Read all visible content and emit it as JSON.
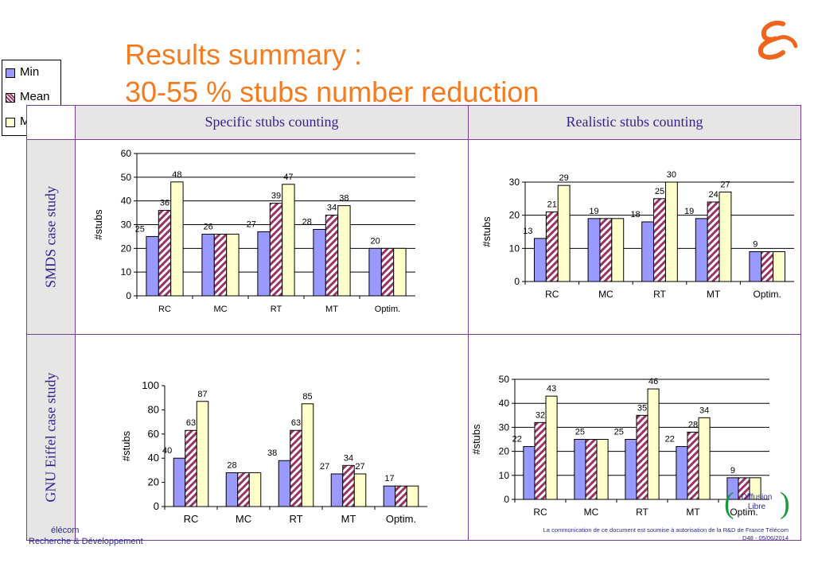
{
  "title": {
    "line1": "Results summary :",
    "line2": "30-55 % stubs number reduction"
  },
  "legend": [
    {
      "label": "Min",
      "color": "#9999ff"
    },
    {
      "label": "Mean",
      "color": "#993366"
    },
    {
      "label": "Max",
      "color": "#ffffcc"
    }
  ],
  "columns": [
    "Specific stubs counting",
    "Realistic stubs counting"
  ],
  "rows": [
    "SMDS case study",
    "GNU Eiffel case study"
  ],
  "chart_data": [
    {
      "type": "bar",
      "row": "SMDS case study",
      "column": "Specific stubs counting",
      "categories": [
        "RC",
        "MC",
        "RT",
        "MT",
        "Optim."
      ],
      "series": [
        {
          "name": "Min",
          "values": [
            25,
            26,
            27,
            28,
            20
          ]
        },
        {
          "name": "Mean",
          "values": [
            36,
            26,
            39,
            34,
            20
          ]
        },
        {
          "name": "Max",
          "values": [
            48,
            26,
            47,
            38,
            20
          ]
        }
      ],
      "labels": [
        [
          "25",
          "36",
          "48"
        ],
        [
          "26",
          "",
          ""
        ],
        [
          "27",
          "39",
          "47"
        ],
        [
          "28",
          "34",
          "38"
        ],
        [
          "20",
          "",
          ""
        ]
      ],
      "ylabel": "#stubs",
      "ylim": [
        0,
        60
      ],
      "yticks": [
        0,
        10,
        20,
        30,
        40,
        50,
        60
      ],
      "grid": true
    },
    {
      "type": "bar",
      "row": "SMDS case study",
      "column": "Realistic stubs counting",
      "categories": [
        "RC",
        "MC",
        "RT",
        "MT",
        "Optim."
      ],
      "series": [
        {
          "name": "Min",
          "values": [
            13,
            19,
            18,
            19,
            9
          ]
        },
        {
          "name": "Mean",
          "values": [
            21,
            19,
            25,
            24,
            9
          ]
        },
        {
          "name": "Max",
          "values": [
            29,
            19,
            30,
            27,
            9
          ]
        }
      ],
      "labels": [
        [
          "13",
          "21",
          "29"
        ],
        [
          "19",
          "",
          ""
        ],
        [
          "18",
          "25",
          "30"
        ],
        [
          "19",
          "24",
          "27"
        ],
        [
          "9",
          "",
          ""
        ]
      ],
      "ylabel": "#stubs",
      "ylim": [
        0,
        30
      ],
      "yticks": [
        0,
        10,
        20,
        30
      ],
      "grid": true
    },
    {
      "type": "bar",
      "row": "GNU Eiffel case study",
      "column": "Specific stubs counting",
      "categories": [
        "RC",
        "MC",
        "RT",
        "MT",
        "Optim."
      ],
      "series": [
        {
          "name": "Min",
          "values": [
            40,
            28,
            38,
            27,
            17
          ]
        },
        {
          "name": "Mean",
          "values": [
            63,
            28,
            63,
            34,
            17
          ]
        },
        {
          "name": "Max",
          "values": [
            87,
            28,
            85,
            27,
            17
          ]
        }
      ],
      "labels": [
        [
          "40",
          "63",
          "87"
        ],
        [
          "28",
          "",
          ""
        ],
        [
          "38",
          "63",
          "85"
        ],
        [
          "27",
          "34",
          "27"
        ],
        [
          "17",
          "",
          ""
        ]
      ],
      "ylabel": "#stubs",
      "ylim": [
        0,
        100
      ],
      "yticks": [
        0,
        20,
        40,
        60,
        80,
        100
      ],
      "grid": false
    },
    {
      "type": "bar",
      "row": "GNU Eiffel case study",
      "column": "Realistic stubs counting",
      "categories": [
        "RC",
        "MC",
        "RT",
        "MT",
        "Optim."
      ],
      "series": [
        {
          "name": "Min",
          "values": [
            22,
            25,
            25,
            22,
            9
          ]
        },
        {
          "name": "Mean",
          "values": [
            32,
            25,
            35,
            28,
            9
          ]
        },
        {
          "name": "Max",
          "values": [
            43,
            25,
            46,
            34,
            9
          ]
        }
      ],
      "labels": [
        [
          "22",
          "32",
          "43"
        ],
        [
          "25",
          "",
          ""
        ],
        [
          "25",
          "35",
          "46"
        ],
        [
          "22",
          "28",
          "34"
        ],
        [
          "9",
          "",
          ""
        ]
      ],
      "ylabel": "#stubs",
      "ylim": [
        0,
        50
      ],
      "yticks": [
        0,
        10,
        20,
        30,
        40,
        50
      ],
      "grid": true
    }
  ],
  "footer": {
    "left_line1": "élécom",
    "left_line2": "Recherche & Développement",
    "right_line1": "La communication de ce document est soumise à autorisation de la R&D de France Télécom",
    "right_line2": "D48 - 05/06/2014",
    "stamp_line1": "Diffusion",
    "stamp_line2": "Libre"
  }
}
